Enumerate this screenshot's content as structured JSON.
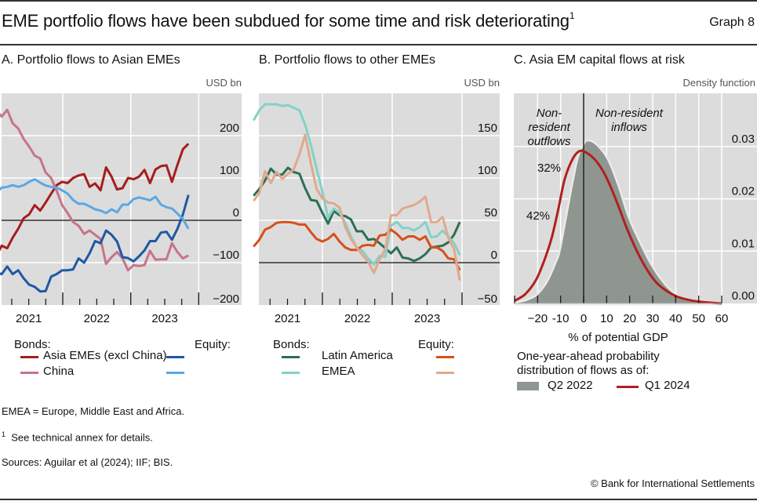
{
  "header": {
    "title": "EME portfolio flows have been subdued for some time and risk deteriorating",
    "title_footnote": "1",
    "graph_number": "Graph 8"
  },
  "colors": {
    "plot_bg": "#dcdcdc",
    "grid": "#ffffff",
    "asia_bonds": "#a51d1d",
    "china_bonds": "#c67487",
    "asia_equity": "#1f58a5",
    "china_equity": "#5aa8e4",
    "latam_bonds": "#2d6e55",
    "emea_bonds": "#82d2c8",
    "latam_equity": "#d84f1a",
    "emea_equity": "#e1a98c",
    "q2_2022_fill": "#8f9690",
    "q1_2024_line": "#b0201f"
  },
  "chart_data": [
    {
      "id": "A",
      "type": "line",
      "title": "A. Portfolio flows to Asian EMEs",
      "unit": "USD bn",
      "ylim": [
        -200,
        300
      ],
      "yticks": [
        200,
        100,
        0,
        -100,
        -200
      ],
      "ytick_labels": [
        "200",
        "100",
        "0",
        "−100",
        "−200"
      ],
      "x_start_month": -1,
      "xlim_years": [
        2020.92,
        2024.32
      ],
      "xtick_labels": [
        "2021",
        "2022",
        "2023"
      ],
      "grid": true,
      "legend": {
        "bonds_heading": "Bonds:",
        "equity_heading": "Equity:",
        "rows": [
          {
            "label": "Asia EMEs (excl China)",
            "bonds": "asia_bonds",
            "equity": "asia_equity"
          },
          {
            "label": "China",
            "bonds": "china_bonds",
            "equity": "china_equity"
          }
        ]
      },
      "series": [
        {
          "name": "Bonds: Asia EMEs (excl China)",
          "color_key": "asia_bonds",
          "values": [
            -75,
            -84,
            -60,
            -66,
            -41,
            -20,
            5,
            14,
            36,
            23,
            42,
            63,
            83,
            91,
            88,
            100,
            106,
            109,
            79,
            87,
            71,
            125,
            103,
            73,
            76,
            100,
            97,
            103,
            119,
            88,
            120,
            128,
            130,
            91,
            131,
            168,
            181
          ]
        },
        {
          "name": "Bonds: China",
          "color_key": "china_bonds",
          "values": [
            229,
            260,
            245,
            261,
            229,
            217,
            192,
            174,
            153,
            146,
            113,
            100,
            70,
            36,
            17,
            -4,
            -13,
            -32,
            -24,
            -34,
            -44,
            -103,
            -87,
            -75,
            -90,
            -118,
            -106,
            -108,
            -106,
            -72,
            -93,
            -92,
            -92,
            -54,
            -75,
            -90,
            -83
          ]
        },
        {
          "name": "Equity: Asia EMEs (excl China)",
          "color_key": "asia_equity",
          "values": [
            -121,
            -124,
            -127,
            -109,
            -127,
            -118,
            -137,
            -152,
            -157,
            -168,
            -167,
            -133,
            -127,
            -118,
            -118,
            -116,
            -90,
            -100,
            -78,
            -49,
            -54,
            -24,
            -34,
            -50,
            -87,
            -89,
            -97,
            -85,
            -71,
            -49,
            -49,
            -29,
            -27,
            -46,
            -20,
            14,
            60
          ]
        },
        {
          "name": "Equity: China",
          "color_key": "china_equity",
          "values": [
            58,
            65,
            77,
            79,
            83,
            79,
            83,
            91,
            97,
            89,
            82,
            79,
            77,
            71,
            63,
            48,
            39,
            39,
            33,
            26,
            23,
            17,
            26,
            19,
            37,
            37,
            50,
            54,
            51,
            47,
            56,
            37,
            31,
            28,
            16,
            3,
            -20
          ]
        }
      ]
    },
    {
      "id": "B",
      "type": "line",
      "title": "B. Portfolio flows to other EMEs",
      "unit": "USD bn",
      "ylim": [
        -50,
        200
      ],
      "yticks": [
        150,
        100,
        50,
        0,
        -50
      ],
      "ytick_labels": [
        "150",
        "100",
        "50",
        "0",
        "−50"
      ],
      "x_start_month": 0,
      "xlim_years": [
        2021.05,
        2024.3
      ],
      "xtick_labels": [
        "2021",
        "2022",
        "2023"
      ],
      "grid": true,
      "legend": {
        "bonds_heading": "Bonds:",
        "equity_heading": "Equity:",
        "rows": [
          {
            "label": "Latin America",
            "bonds": "latam_bonds",
            "equity": "latam_equity"
          },
          {
            "label": "EMEA",
            "bonds": "emea_bonds",
            "equity": "emea_equity"
          }
        ]
      },
      "series": [
        {
          "name": "Bonds: Latin America",
          "color_key": "latam_bonds",
          "values": [
            79,
            87,
            97,
            111,
            104,
            104,
            112,
            107,
            105,
            88,
            74,
            73,
            59,
            46,
            61,
            56,
            55,
            51,
            37,
            37,
            27,
            28,
            23,
            17,
            11,
            18,
            6,
            5,
            2,
            5,
            10,
            18,
            19,
            20,
            24,
            33,
            48
          ]
        },
        {
          "name": "Bonds: EMEA",
          "color_key": "emea_bonds",
          "values": [
            168,
            180,
            187,
            187,
            187,
            185,
            186,
            183,
            180,
            163,
            139,
            111,
            84,
            53,
            64,
            59,
            47,
            31,
            18,
            14,
            5,
            -2,
            8,
            7,
            44,
            48,
            41,
            41,
            38,
            42,
            48,
            30,
            31,
            38,
            31,
            23,
            9
          ]
        },
        {
          "name": "Equity: Latin America",
          "color_key": "latam_equity",
          "values": [
            19,
            27,
            39,
            42,
            47,
            48,
            48,
            47,
            45,
            45,
            36,
            28,
            25,
            28,
            34,
            25,
            18,
            15,
            15,
            20,
            21,
            20,
            32,
            33,
            39,
            34,
            27,
            31,
            31,
            27,
            31,
            18,
            18,
            14,
            5,
            4,
            -9
          ]
        },
        {
          "name": "Equity: EMEA",
          "color_key": "emea_equity",
          "values": [
            73,
            82,
            108,
            94,
            107,
            99,
            105,
            110,
            128,
            151,
            117,
            87,
            76,
            71,
            70,
            65,
            42,
            28,
            18,
            9,
            1,
            -12,
            4,
            16,
            56,
            56,
            64,
            66,
            68,
            72,
            78,
            48,
            48,
            54,
            29,
            16,
            -21
          ]
        }
      ]
    },
    {
      "id": "C",
      "type": "area",
      "title": "C. Asia EM capital flows at risk",
      "unit": "Density function",
      "xlabel": "% of potential GDP",
      "xlim": [
        -30,
        60
      ],
      "xticks": [
        -20,
        -10,
        0,
        10,
        20,
        30,
        40,
        50,
        60
      ],
      "xtick_labels": [
        "−20",
        "-10",
        "0",
        "10",
        "20",
        "30",
        "40",
        "50",
        "60"
      ],
      "ylim": [
        0,
        0.0355
      ],
      "yticks": [
        0.03,
        0.02,
        0.01,
        0.0
      ],
      "ytick_labels": [
        "0.03",
        "0.02",
        "0.01",
        "0.00"
      ],
      "grid": true,
      "annotations": {
        "outflows": [
          "Non-",
          "resident",
          "outflows"
        ],
        "inflows": [
          "Non-resident",
          "inflows"
        ],
        "pct_q2_2022": "32%",
        "pct_q1_2024": "42%"
      },
      "legend": {
        "heading_line1": "One-year-ahead probability",
        "heading_line2": "distribution of flows as of:",
        "items": [
          {
            "label": "Q2 2022",
            "kind": "area",
            "color_key": "q2_2022_fill"
          },
          {
            "label": "Q1 2024",
            "kind": "line",
            "color_key": "q1_2024_line"
          }
        ]
      },
      "series": [
        {
          "name": "Q2 2022",
          "kind": "area",
          "color_key": "q2_2022_fill",
          "points": [
            [
              -30,
              0
            ],
            [
              -26,
              0.0003
            ],
            [
              -23,
              0.0008
            ],
            [
              -20.7,
              0.0013
            ],
            [
              -18,
              0.0025
            ],
            [
              -15,
              0.0045
            ],
            [
              -12,
              0.0075
            ],
            [
              -10,
              0.01
            ],
            [
              -7,
              0.017
            ],
            [
              -4,
              0.024
            ],
            [
              -2,
              0.028
            ],
            [
              0.3,
              0.0303
            ],
            [
              2,
              0.031
            ],
            [
              5.5,
              0.0302
            ],
            [
              10,
              0.0276
            ],
            [
              14.6,
              0.0226
            ],
            [
              19.1,
              0.0165
            ],
            [
              23.7,
              0.012
            ],
            [
              28.2,
              0.008
            ],
            [
              32.8,
              0.0048
            ],
            [
              37.3,
              0.0025
            ],
            [
              41.9,
              0.001
            ],
            [
              47.5,
              0.0003
            ],
            [
              53,
              0.0001
            ],
            [
              60,
              0
            ]
          ]
        },
        {
          "name": "Q1 2024",
          "kind": "line",
          "color_key": "q1_2024_line",
          "points": [
            [
              -30,
              0.0005
            ],
            [
              -25.3,
              0.0018
            ],
            [
              -20.7,
              0.0045
            ],
            [
              -17.3,
              0.008
            ],
            [
              -13.9,
              0.0125
            ],
            [
              -11,
              0.018
            ],
            [
              -8.2,
              0.0238
            ],
            [
              -4.8,
              0.0276
            ],
            [
              -1.9,
              0.0291
            ],
            [
              0.9,
              0.0289
            ],
            [
              5.5,
              0.0272
            ],
            [
              10,
              0.024
            ],
            [
              14.6,
              0.0192
            ],
            [
              19.1,
              0.014
            ],
            [
              23.7,
              0.0095
            ],
            [
              28.2,
              0.006
            ],
            [
              32.8,
              0.0035
            ],
            [
              39.6,
              0.0015
            ],
            [
              45.3,
              0.0007
            ],
            [
              51,
              0.0003
            ],
            [
              60,
              0.0
            ]
          ]
        }
      ]
    }
  ],
  "footnotes": {
    "abbreviation": "EMEA = Europe, Middle East and Africa.",
    "note_marker": "1",
    "note_text": "See technical annex for details.",
    "sources": "Sources: Aguilar et al (2024); IIF; BIS.",
    "copyright": "© Bank for International Settlements"
  }
}
